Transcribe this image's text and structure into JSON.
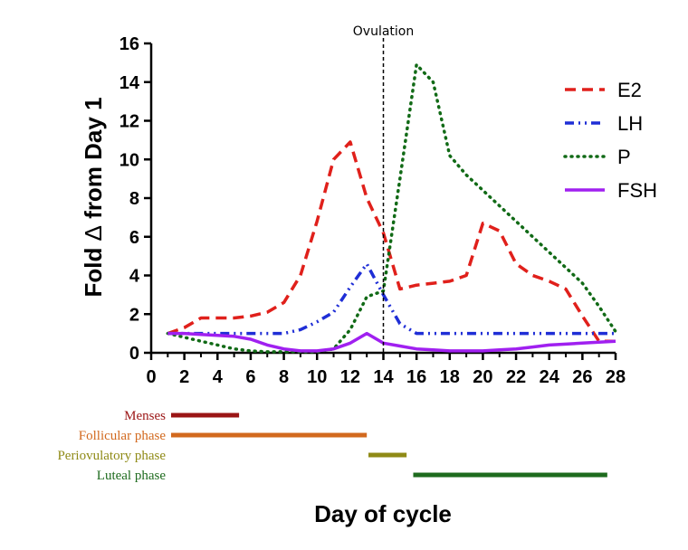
{
  "chart_data": {
    "type": "line",
    "title": "",
    "xlabel": "Day of cycle",
    "ylabel_main": "Fold ",
    "ylabel_symbol": "Δ",
    "ylabel_tail": " from Day 1",
    "xlim": [
      0,
      28
    ],
    "ylim": [
      0,
      16
    ],
    "x_ticks": [
      0,
      2,
      4,
      6,
      8,
      10,
      12,
      14,
      16,
      18,
      20,
      22,
      24,
      26,
      28
    ],
    "y_ticks": [
      0,
      2,
      4,
      6,
      8,
      10,
      12,
      14,
      16
    ],
    "grid": false,
    "legend_position": "top-right",
    "series": [
      {
        "name": "E2",
        "color": "#e0201b",
        "style": "dashed",
        "x": [
          1,
          2,
          3,
          4,
          5,
          6,
          7,
          8,
          9,
          10,
          11,
          12,
          13,
          14,
          15,
          16,
          17,
          18,
          19,
          20,
          21,
          22,
          23,
          24,
          25,
          26,
          27,
          28
        ],
        "y": [
          1.0,
          1.3,
          1.8,
          1.8,
          1.8,
          1.9,
          2.1,
          2.6,
          4.0,
          6.8,
          10.0,
          10.9,
          8.0,
          6.2,
          3.3,
          3.5,
          3.6,
          3.7,
          4.0,
          6.7,
          6.3,
          4.6,
          4.0,
          3.7,
          3.3,
          1.9,
          0.6,
          0.6
        ]
      },
      {
        "name": "LH",
        "color": "#1f2ed6",
        "style": "dash-dot",
        "x": [
          1,
          2,
          3,
          4,
          5,
          6,
          7,
          8,
          9,
          10,
          11,
          12,
          13,
          14,
          15,
          16,
          17,
          18,
          19,
          20,
          21,
          22,
          23,
          24,
          25,
          26,
          27,
          28
        ],
        "y": [
          1.0,
          1.0,
          1.0,
          1.0,
          1.0,
          1.0,
          1.0,
          1.0,
          1.2,
          1.6,
          2.1,
          3.4,
          4.6,
          3.0,
          1.5,
          1.0,
          1.0,
          1.0,
          1.0,
          1.0,
          1.0,
          1.0,
          1.0,
          1.0,
          1.0,
          1.0,
          1.0,
          1.0
        ]
      },
      {
        "name": "P",
        "color": "#116a16",
        "style": "dotted",
        "x": [
          1,
          2,
          3,
          4,
          5,
          6,
          7,
          8,
          9,
          10,
          11,
          12,
          13,
          14,
          15,
          16,
          17,
          18,
          19,
          20,
          21,
          22,
          23,
          24,
          25,
          26,
          27,
          28
        ],
        "y": [
          1.0,
          0.8,
          0.6,
          0.4,
          0.2,
          0.1,
          0.05,
          0.05,
          0.05,
          0.05,
          0.2,
          1.2,
          2.9,
          3.2,
          9.0,
          14.9,
          14.0,
          10.2,
          9.2,
          8.4,
          7.6,
          6.8,
          6.0,
          5.2,
          4.4,
          3.6,
          2.4,
          1.1
        ]
      },
      {
        "name": "FSH",
        "color": "#a020f0",
        "style": "solid",
        "x": [
          1,
          2,
          3,
          4,
          5,
          6,
          7,
          8,
          9,
          10,
          11,
          12,
          13,
          14,
          15,
          16,
          17,
          18,
          19,
          20,
          21,
          22,
          23,
          24,
          25,
          26,
          27,
          28
        ],
        "y": [
          1.0,
          1.0,
          0.95,
          0.9,
          0.85,
          0.7,
          0.4,
          0.2,
          0.1,
          0.1,
          0.2,
          0.5,
          1.0,
          0.5,
          0.35,
          0.2,
          0.15,
          0.1,
          0.1,
          0.1,
          0.15,
          0.2,
          0.3,
          0.4,
          0.45,
          0.5,
          0.55,
          0.6
        ]
      }
    ],
    "annotations": [
      {
        "label": "Ovulation",
        "x": 14
      }
    ],
    "phases": [
      {
        "label": "Menses",
        "start": 1.2,
        "end": 5.3,
        "color": "#9b1515"
      },
      {
        "label": "Follicular phase",
        "start": 1.2,
        "end": 13.0,
        "color": "#d2691e"
      },
      {
        "label": "Periovulatory phase",
        "start": 13.1,
        "end": 15.4,
        "color": "#8f8a16"
      },
      {
        "label": "Luteal phase",
        "start": 15.8,
        "end": 27.5,
        "color": "#1e6b1e"
      }
    ]
  }
}
